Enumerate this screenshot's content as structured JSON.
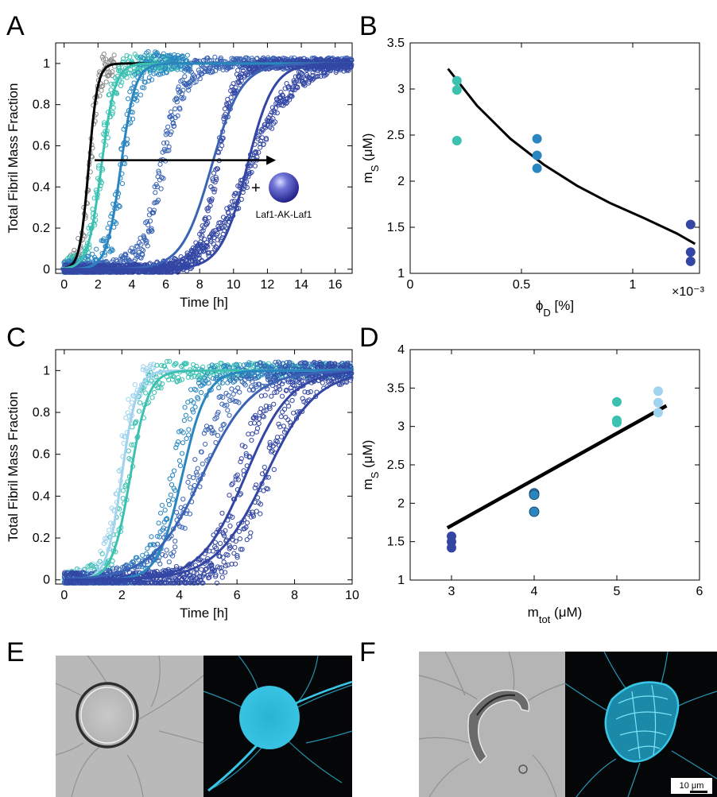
{
  "panel_letters": [
    "A",
    "B",
    "C",
    "D",
    "E",
    "F"
  ],
  "colors": {
    "gray": "#8c8c8c",
    "light_blue": "#9fd3ee",
    "teal": "#3cc1b1",
    "mid_blue": "#2a86c0",
    "blue": "#3a63b5",
    "dark_blue": "#3346a4",
    "cyan_stain": "#3ac6e6"
  },
  "chart_data": [
    {
      "panel": "A",
      "type": "scatter",
      "xlabel": "Time [h]",
      "ylabel": "Total Fibril Mass Fraction",
      "xlim": [
        -0.5,
        17
      ],
      "ylim": [
        -0.02,
        1.1
      ],
      "xticks": [
        0,
        2,
        4,
        6,
        8,
        10,
        12,
        14,
        16
      ],
      "yticks": [
        0,
        0.2,
        0.4,
        0.6,
        0.8,
        1
      ],
      "annotation": {
        "text": "Laf1-AK-Laf1",
        "plus": "+",
        "arrow_from": [
          1.8,
          0.53
        ],
        "arrow_to": [
          12.5,
          0.53
        ]
      },
      "series": [
        {
          "color": "gray",
          "midpoint": 1.5,
          "width": 0.25,
          "fit_midpoint": 1.45,
          "t_max": 3.0,
          "noise": 0.05,
          "fit_color": "#000000"
        },
        {
          "color": "teal",
          "midpoint": 2.2,
          "width": 0.38,
          "fit_midpoint": 2.2,
          "t_max": 6.8,
          "noise": 0.05
        },
        {
          "color": "mid_blue",
          "midpoint": 3.4,
          "width": 0.4,
          "fit_midpoint": 3.35,
          "t_max": 7.5,
          "noise": 0.06
        },
        {
          "color": "blue",
          "midpoint": 5.8,
          "width": 0.6,
          "fit_midpoint": 8.7,
          "t_max": 17,
          "noise": 0.04
        },
        {
          "color": "dark_blue",
          "midpoint": 9.0,
          "width": 0.5,
          "fit_midpoint": 10.8,
          "t_max": 17,
          "noise": 0.03
        },
        {
          "color": "dark_blue",
          "midpoint": 11.0,
          "width": 1.2,
          "fit_midpoint": 11.0,
          "t_max": 17,
          "noise": 0.03
        }
      ]
    },
    {
      "panel": "B",
      "type": "scatter",
      "xlabel": "ϕ_D [%]",
      "ylabel": "m_S (μM)",
      "xlim": [
        0,
        1.3
      ],
      "ylim": [
        1,
        3.5
      ],
      "xticks": [
        0,
        0.5,
        1
      ],
      "yticks": [
        1,
        1.5,
        2,
        2.5,
        3,
        3.5
      ],
      "x_multiplier": "×10⁻³",
      "points": [
        {
          "x": 0.21,
          "y": 3.09,
          "color": "teal"
        },
        {
          "x": 0.21,
          "y": 2.99,
          "color": "teal"
        },
        {
          "x": 0.21,
          "y": 2.44,
          "color": "teal"
        },
        {
          "x": 0.57,
          "y": 2.46,
          "color": "mid_blue"
        },
        {
          "x": 0.57,
          "y": 2.28,
          "color": "mid_blue"
        },
        {
          "x": 0.57,
          "y": 2.14,
          "color": "mid_blue"
        },
        {
          "x": 1.26,
          "y": 1.53,
          "color": "dark_blue"
        },
        {
          "x": 1.26,
          "y": 1.23,
          "color": "dark_blue"
        },
        {
          "x": 1.26,
          "y": 1.13,
          "color": "dark_blue"
        }
      ],
      "fit": {
        "x": [
          0.17,
          0.3,
          0.45,
          0.6,
          0.75,
          0.9,
          1.05,
          1.2,
          1.28
        ],
        "y": [
          3.22,
          2.82,
          2.46,
          2.18,
          1.95,
          1.76,
          1.6,
          1.43,
          1.32
        ]
      }
    },
    {
      "panel": "C",
      "type": "scatter",
      "xlabel": "Time [h]",
      "ylabel": "Total Fibril Mass Fraction",
      "xlim": [
        -0.3,
        10
      ],
      "ylim": [
        -0.02,
        1.1
      ],
      "xticks": [
        0,
        2,
        4,
        6,
        8,
        10
      ],
      "yticks": [
        0,
        0.2,
        0.4,
        0.6,
        0.8,
        1
      ],
      "series": [
        {
          "color": "light_blue",
          "midpoint": 1.9,
          "width": 0.25,
          "fit_midpoint": 2.0,
          "t_max": 3.2,
          "noise": 0.04
        },
        {
          "color": "teal",
          "midpoint": 2.2,
          "width": 0.3,
          "fit_midpoint": 2.3,
          "t_max": 10,
          "noise": 0.05
        },
        {
          "color": "mid_blue",
          "midpoint": 3.8,
          "width": 0.4,
          "fit_midpoint": 4.1,
          "t_max": 10,
          "noise": 0.05
        },
        {
          "color": "blue",
          "midpoint": 4.6,
          "width": 0.6,
          "fit_midpoint": 4.8,
          "t_max": 10,
          "noise": 0.05
        },
        {
          "color": "dark_blue",
          "midpoint": 6.1,
          "width": 0.5,
          "fit_midpoint": 6.3,
          "t_max": 10,
          "noise": 0.05
        },
        {
          "color": "dark_blue",
          "midpoint": 7.0,
          "width": 0.6,
          "fit_midpoint": 7.0,
          "t_max": 10,
          "noise": 0.05
        }
      ]
    },
    {
      "panel": "D",
      "type": "scatter",
      "xlabel": "m_tot (μM)",
      "ylabel": "m_S (μM)",
      "xlim": [
        2.5,
        6
      ],
      "ylim": [
        1,
        4
      ],
      "xticks": [
        3,
        4,
        5,
        6
      ],
      "yticks": [
        1,
        1.5,
        2,
        2.5,
        3,
        3.5,
        4
      ],
      "points": [
        {
          "x": 3,
          "y": 1.57,
          "color": "dark_blue"
        },
        {
          "x": 3,
          "y": 1.5,
          "color": "dark_blue"
        },
        {
          "x": 3,
          "y": 1.42,
          "color": "dark_blue"
        },
        {
          "x": 4,
          "y": 2.13,
          "color": "mid_blue"
        },
        {
          "x": 4,
          "y": 2.11,
          "color": "mid_blue"
        },
        {
          "x": 4,
          "y": 1.89,
          "color": "mid_blue"
        },
        {
          "x": 5,
          "y": 3.32,
          "color": "teal"
        },
        {
          "x": 5,
          "y": 3.08,
          "color": "teal"
        },
        {
          "x": 5,
          "y": 3.05,
          "color": "teal"
        },
        {
          "x": 5.5,
          "y": 3.46,
          "color": "light_blue"
        },
        {
          "x": 5.5,
          "y": 3.31,
          "color": "light_blue"
        },
        {
          "x": 5.5,
          "y": 3.18,
          "color": "light_blue"
        }
      ],
      "fit": {
        "x": [
          2.95,
          5.6
        ],
        "y": [
          1.68,
          3.27
        ]
      }
    }
  ],
  "micrographs": {
    "E": {
      "kind": "droplet"
    },
    "F": {
      "kind": "aggregate",
      "scale_bar": "10 μm"
    }
  }
}
